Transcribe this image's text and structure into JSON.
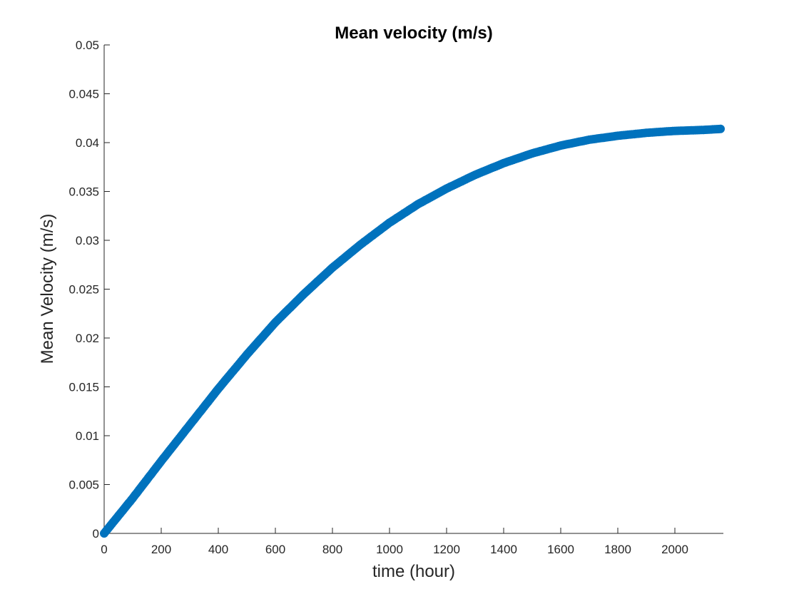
{
  "chart_data": {
    "type": "scatter",
    "title": "Mean velocity (m/s)",
    "xlabel": "time (hour)",
    "ylabel": "Mean Velocity (m/s)",
    "xlim": [
      0,
      2170
    ],
    "ylim": [
      0,
      0.05
    ],
    "xticks": [
      0,
      200,
      400,
      600,
      800,
      1000,
      1200,
      1400,
      1600,
      1800,
      2000
    ],
    "yticks": [
      0,
      0.005,
      0.01,
      0.015,
      0.02,
      0.025,
      0.03,
      0.035,
      0.04,
      0.045,
      0.05
    ],
    "xtick_labels": [
      "0",
      "200",
      "400",
      "600",
      "800",
      "1000",
      "1200",
      "1400",
      "1600",
      "1800",
      "2000"
    ],
    "ytick_labels": [
      "0",
      "0.005",
      "0.01",
      "0.015",
      "0.02",
      "0.025",
      "0.03",
      "0.035",
      "0.04",
      "0.045",
      "0.05"
    ],
    "grid": false,
    "marker_color": "#0072BD",
    "series": [
      {
        "x": [
          0,
          100,
          200,
          300,
          400,
          500,
          600,
          700,
          800,
          900,
          1000,
          1100,
          1200,
          1300,
          1400,
          1500,
          1600,
          1700,
          1800,
          1900,
          2000,
          2100,
          2160
        ],
        "values": [
          0,
          0.0036,
          0.0074,
          0.0111,
          0.0148,
          0.0183,
          0.0216,
          0.0245,
          0.0272,
          0.0296,
          0.0318,
          0.0337,
          0.0353,
          0.0367,
          0.0379,
          0.0389,
          0.0397,
          0.0403,
          0.0407,
          0.041,
          0.0412,
          0.0413,
          0.0414
        ]
      }
    ]
  }
}
